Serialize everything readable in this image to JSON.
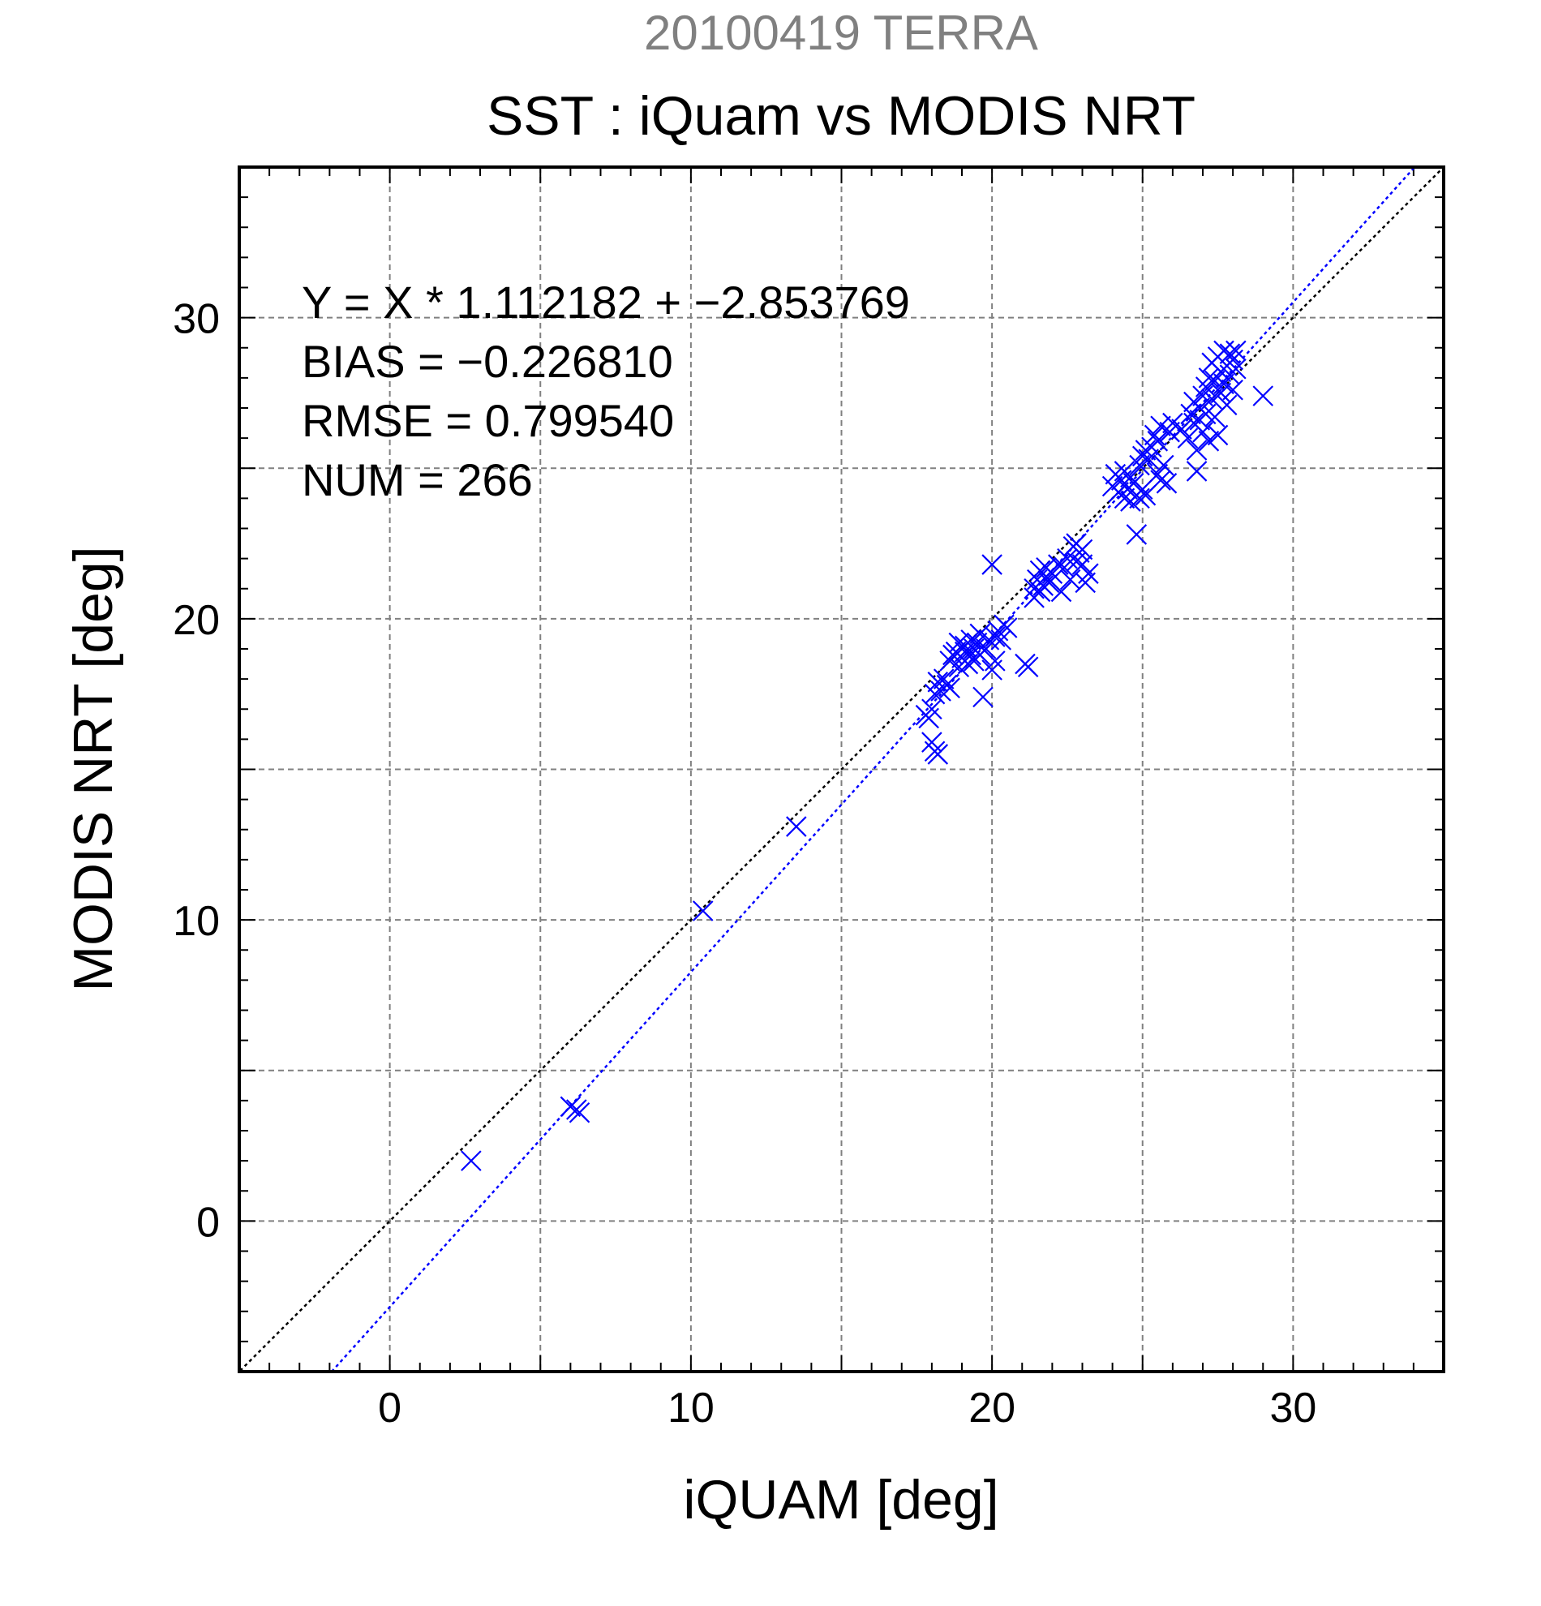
{
  "page": {
    "date_title": "20100419 TERRA",
    "main_title": "SST : iQuam vs MODIS NRT"
  },
  "colors": {
    "series": "#0000ff",
    "identity_line": "#000000",
    "grid": "#808080",
    "date_title": "#808080",
    "text": "#000000"
  },
  "chart_data": {
    "type": "scatter",
    "title": "SST : iQuam vs MODIS NRT",
    "xlabel": "iQUAM [deg]",
    "ylabel": "MODIS NRT [deg]",
    "xlim": [
      -5,
      35
    ],
    "ylim": [
      -5,
      35
    ],
    "xticks": [
      0,
      10,
      20,
      30
    ],
    "yticks": [
      0,
      10,
      20,
      30
    ],
    "grid": true,
    "grid_interval": 5,
    "minor_tick_interval": 1,
    "stats": [
      "Y = X * 1.112182 + −2.853769",
      "BIAS = −0.226810",
      "RMSE = 0.799540",
      "NUM = 266"
    ],
    "identity_line": {
      "slope": 1,
      "intercept": 0,
      "style": "dotted",
      "color": "#000000"
    },
    "regression_line": {
      "slope": 1.112182,
      "intercept": -2.853769,
      "style": "dotted",
      "color": "#0000ff"
    },
    "marker": "x",
    "points": [
      [
        2.7,
        2.0
      ],
      [
        6.0,
        3.8
      ],
      [
        6.2,
        3.7
      ],
      [
        6.3,
        3.6
      ],
      [
        10.4,
        10.3
      ],
      [
        13.5,
        13.1
      ],
      [
        17.8,
        16.8
      ],
      [
        18.0,
        17.0
      ],
      [
        17.9,
        16.7
      ],
      [
        18.0,
        15.9
      ],
      [
        18.1,
        15.6
      ],
      [
        18.2,
        15.5
      ],
      [
        18.1,
        17.5
      ],
      [
        18.2,
        17.9
      ],
      [
        18.3,
        17.6
      ],
      [
        18.5,
        17.8
      ],
      [
        18.6,
        17.7
      ],
      [
        18.4,
        18.0
      ],
      [
        18.6,
        18.6
      ],
      [
        18.7,
        18.8
      ],
      [
        18.8,
        18.9
      ],
      [
        18.9,
        19.2
      ],
      [
        18.9,
        18.4
      ],
      [
        19.0,
        18.7
      ],
      [
        19.1,
        18.9
      ],
      [
        19.1,
        19.1
      ],
      [
        19.2,
        18.5
      ],
      [
        19.3,
        18.8
      ],
      [
        19.3,
        19.3
      ],
      [
        19.4,
        19.0
      ],
      [
        19.4,
        18.6
      ],
      [
        19.5,
        19.2
      ],
      [
        19.6,
        18.8
      ],
      [
        19.6,
        19.5
      ],
      [
        19.7,
        17.4
      ],
      [
        19.8,
        19.0
      ],
      [
        19.9,
        19.3
      ],
      [
        20.0,
        18.3
      ],
      [
        20.1,
        19.4
      ],
      [
        20.1,
        18.6
      ],
      [
        20.2,
        19.6
      ],
      [
        20.3,
        19.3
      ],
      [
        20.4,
        19.8
      ],
      [
        20.5,
        19.7
      ],
      [
        20.0,
        21.8
      ],
      [
        21.1,
        18.5
      ],
      [
        21.2,
        18.4
      ],
      [
        21.4,
        21.0
      ],
      [
        21.4,
        20.7
      ],
      [
        21.5,
        21.3
      ],
      [
        21.6,
        20.9
      ],
      [
        21.6,
        21.6
      ],
      [
        21.7,
        21.1
      ],
      [
        21.8,
        21.4
      ],
      [
        21.8,
        21.7
      ],
      [
        21.9,
        21.2
      ],
      [
        22.0,
        21.5
      ],
      [
        22.2,
        21.8
      ],
      [
        22.3,
        20.9
      ],
      [
        22.4,
        21.7
      ],
      [
        22.5,
        22.0
      ],
      [
        22.6,
        21.3
      ],
      [
        22.7,
        22.4
      ],
      [
        22.8,
        21.9
      ],
      [
        22.8,
        22.5
      ],
      [
        22.9,
        22.2
      ],
      [
        23.0,
        21.8
      ],
      [
        23.0,
        22.3
      ],
      [
        23.1,
        21.2
      ],
      [
        23.2,
        21.5
      ],
      [
        24.0,
        24.4
      ],
      [
        24.1,
        24.8
      ],
      [
        24.2,
        24.2
      ],
      [
        24.3,
        24.6
      ],
      [
        24.4,
        24.0
      ],
      [
        24.4,
        24.9
      ],
      [
        24.5,
        24.3
      ],
      [
        24.6,
        24.7
      ],
      [
        24.6,
        23.9
      ],
      [
        24.7,
        24.5
      ],
      [
        24.8,
        24.1
      ],
      [
        24.8,
        22.8
      ],
      [
        24.9,
        25.1
      ],
      [
        24.9,
        24.0
      ],
      [
        25.0,
        24.3
      ],
      [
        25.0,
        25.4
      ],
      [
        25.1,
        24.1
      ],
      [
        25.1,
        25.6
      ],
      [
        25.2,
        25.3
      ],
      [
        25.3,
        25.7
      ],
      [
        25.4,
        26.1
      ],
      [
        25.5,
        24.8
      ],
      [
        25.5,
        25.9
      ],
      [
        25.6,
        24.6
      ],
      [
        25.6,
        26.4
      ],
      [
        25.7,
        25.1
      ],
      [
        25.8,
        24.5
      ],
      [
        25.9,
        26.2
      ],
      [
        26.0,
        26.5
      ],
      [
        26.3,
        26.3
      ],
      [
        26.5,
        26.0
      ],
      [
        26.6,
        26.8
      ],
      [
        26.7,
        26.5
      ],
      [
        26.7,
        27.2
      ],
      [
        26.8,
        25.6
      ],
      [
        26.8,
        24.9
      ],
      [
        26.9,
        27.0
      ],
      [
        26.9,
        26.6
      ],
      [
        27.0,
        27.4
      ],
      [
        27.0,
        26.2
      ],
      [
        27.1,
        27.7
      ],
      [
        27.1,
        26.8
      ],
      [
        27.2,
        28.0
      ],
      [
        27.2,
        25.9
      ],
      [
        27.3,
        27.3
      ],
      [
        27.3,
        28.5
      ],
      [
        27.4,
        26.7
      ],
      [
        27.4,
        27.9
      ],
      [
        27.5,
        28.7
      ],
      [
        27.5,
        26.1
      ],
      [
        27.6,
        28.2
      ],
      [
        27.6,
        27.5
      ],
      [
        27.7,
        28.9
      ],
      [
        27.7,
        27.8
      ],
      [
        27.8,
        28.4
      ],
      [
        27.8,
        27.1
      ],
      [
        27.9,
        28.8
      ],
      [
        27.9,
        28.1
      ],
      [
        28.0,
        28.6
      ],
      [
        28.0,
        27.6
      ],
      [
        28.1,
        28.9
      ],
      [
        28.1,
        28.3
      ],
      [
        29.0,
        27.4
      ]
    ]
  }
}
